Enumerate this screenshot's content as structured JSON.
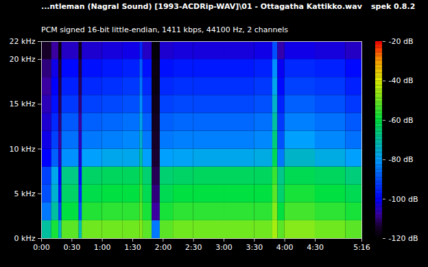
{
  "chart_data": {
    "type": "heatmap",
    "title": "...ntleman (Nagral Sound) [1993-ACDRip-WAV]\\01 - Ottagatha Kattikko.wav",
    "subtitle": "PCM signed 16-bit little-endian, 1411 kbps, 44100 Hz, 2 channels",
    "annotations": [
      "spek 0.8.2"
    ],
    "xlim": [
      0,
      316
    ],
    "xticks": [
      {
        "value": 0,
        "label": "0:00"
      },
      {
        "value": 30,
        "label": "0:30"
      },
      {
        "value": 60,
        "label": "1:00"
      },
      {
        "value": 90,
        "label": "1:30"
      },
      {
        "value": 120,
        "label": "2:00"
      },
      {
        "value": 150,
        "label": "2:30"
      },
      {
        "value": 180,
        "label": "3:00"
      },
      {
        "value": 210,
        "label": "3:30"
      },
      {
        "value": 240,
        "label": "4:00"
      },
      {
        "value": 270,
        "label": "4:30"
      },
      {
        "value": 316,
        "label": "5:16"
      }
    ],
    "ylim": [
      0,
      22
    ],
    "yticks": [
      {
        "value": 0,
        "label": "0 kHz"
      },
      {
        "value": 5,
        "label": "5 kHz"
      },
      {
        "value": 10,
        "label": "10 kHz"
      },
      {
        "value": 15,
        "label": "15 kHz"
      },
      {
        "value": 20,
        "label": "20 kHz"
      },
      {
        "value": 22,
        "label": "22 kHz"
      }
    ],
    "x_edges": [
      0,
      10,
      17,
      20,
      37,
      40,
      60,
      80,
      97,
      100,
      109,
      117,
      130,
      150,
      180,
      210,
      228,
      233,
      240,
      270,
      300,
      316
    ],
    "y_edges": [
      0,
      2,
      4,
      6,
      8,
      10,
      12,
      14,
      16,
      18,
      20,
      22
    ],
    "cells": [
      [
        -70,
        -85,
        -90,
        -92,
        -100,
        -102,
        -104,
        -106,
        -108,
        -110,
        -115
      ],
      [
        -58,
        -70,
        -75,
        -78,
        -88,
        -92,
        -95,
        -98,
        -100,
        -102,
        -108
      ],
      [
        -75,
        -92,
        -98,
        -100,
        -105,
        -108,
        -110,
        -112,
        -113,
        -114,
        -118
      ],
      [
        -52,
        -60,
        -64,
        -67,
        -82,
        -86,
        -89,
        -93,
        -96,
        -99,
        -105
      ],
      [
        -72,
        -90,
        -95,
        -98,
        -104,
        -106,
        -108,
        -110,
        -112,
        -113,
        -117
      ],
      [
        -50,
        -57,
        -61,
        -64,
        -80,
        -85,
        -88,
        -92,
        -95,
        -98,
        -104
      ],
      [
        -50,
        -56,
        -60,
        -63,
        -78,
        -84,
        -87,
        -91,
        -94,
        -97,
        -103
      ],
      [
        -50,
        -56,
        -60,
        -63,
        -78,
        -83,
        -86,
        -90,
        -93,
        -96,
        -102
      ],
      [
        -48,
        -52,
        -55,
        -58,
        -70,
        -75,
        -78,
        -82,
        -85,
        -88,
        -95
      ],
      [
        -52,
        -58,
        -62,
        -65,
        -80,
        -85,
        -88,
        -92,
        -95,
        -98,
        -105
      ],
      [
        -85,
        -108,
        -110,
        -112,
        -114,
        -115,
        -116,
        -117,
        -118,
        -118,
        -119
      ],
      [
        -52,
        -58,
        -62,
        -65,
        -80,
        -85,
        -88,
        -92,
        -95,
        -98,
        -104
      ],
      [
        -50,
        -56,
        -60,
        -64,
        -79,
        -84,
        -87,
        -91,
        -94,
        -97,
        -103
      ],
      [
        -50,
        -56,
        -60,
        -63,
        -78,
        -84,
        -87,
        -91,
        -94,
        -97,
        -103
      ],
      [
        -50,
        -56,
        -60,
        -63,
        -78,
        -84,
        -87,
        -91,
        -94,
        -97,
        -103
      ],
      [
        -50,
        -56,
        -60,
        -63,
        -77,
        -83,
        -86,
        -90,
        -93,
        -96,
        -102
      ],
      [
        -45,
        -48,
        -52,
        -55,
        -62,
        -66,
        -70,
        -74,
        -78,
        -82,
        -90
      ],
      [
        -52,
        -60,
        -65,
        -68,
        -85,
        -90,
        -93,
        -96,
        -99,
        -101,
        -107
      ],
      [
        -48,
        -54,
        -58,
        -62,
        -74,
        -80,
        -84,
        -88,
        -92,
        -95,
        -102
      ],
      [
        -50,
        -56,
        -60,
        -63,
        -77,
        -83,
        -86,
        -90,
        -93,
        -96,
        -103
      ],
      [
        -52,
        -58,
        -62,
        -66,
        -80,
        -86,
        -89,
        -93,
        -96,
        -99,
        -105
      ]
    ],
    "colorbar": {
      "range": [
        -120,
        -20
      ],
      "ticks": [
        {
          "value": -20,
          "label": "-20 dB"
        },
        {
          "value": -40,
          "label": "-40 dB"
        },
        {
          "value": -60,
          "label": "-60 dB"
        },
        {
          "value": -80,
          "label": "-80 dB"
        },
        {
          "value": -100,
          "label": "-100 dB"
        },
        {
          "value": -120,
          "label": "-120 dB"
        }
      ]
    }
  }
}
